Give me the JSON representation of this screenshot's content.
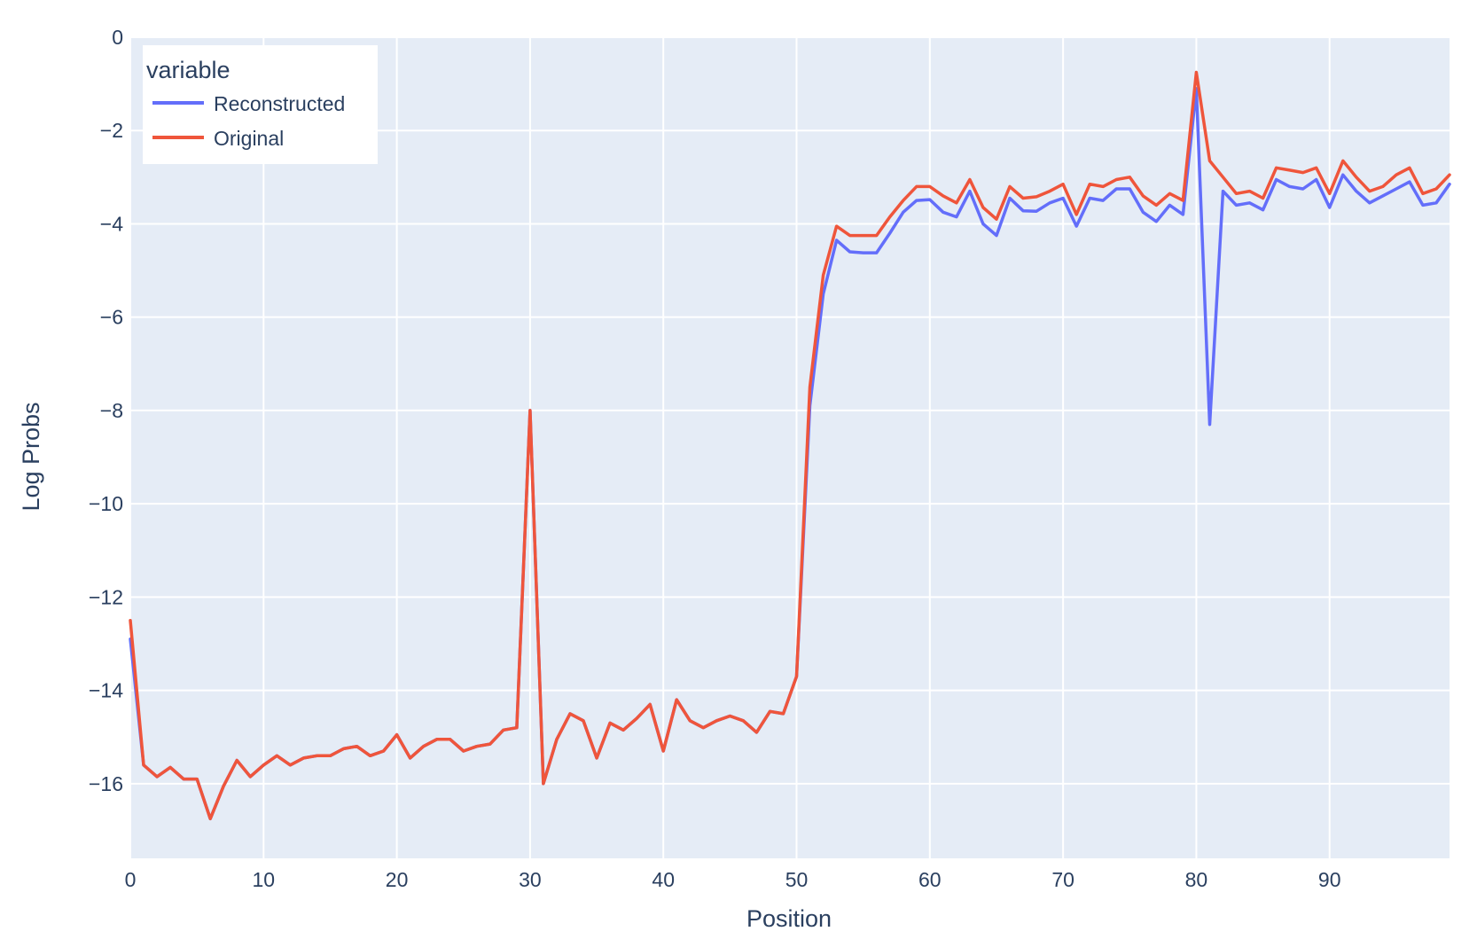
{
  "chart_data": {
    "type": "line",
    "xlabel": "Position",
    "ylabel": "Log Probs",
    "xlim": [
      0,
      99
    ],
    "ylim": [
      -17.6,
      0
    ],
    "x_ticks": [
      0,
      10,
      20,
      30,
      40,
      50,
      60,
      70,
      80,
      90
    ],
    "y_ticks": [
      0,
      -2,
      -4,
      -6,
      -8,
      -10,
      -12,
      -14,
      -16
    ],
    "y_tick_labels": [
      "0",
      "−2",
      "−4",
      "−6",
      "−8",
      "−10",
      "−12",
      "−14",
      "−16"
    ],
    "grid": true,
    "legend": {
      "title": "variable",
      "position": "top-left"
    },
    "series": [
      {
        "name": "Reconstructed",
        "color": "#636efa",
        "values": [
          -12.9,
          -15.6,
          -15.85,
          -15.65,
          -15.9,
          -15.9,
          -16.75,
          -16.05,
          -15.5,
          -15.85,
          -15.6,
          -15.4,
          -15.6,
          -15.45,
          -15.4,
          -15.4,
          -15.25,
          -15.2,
          -15.4,
          -15.3,
          -14.95,
          -15.45,
          -15.2,
          -15.05,
          -15.05,
          -15.3,
          -15.2,
          -15.15,
          -14.85,
          -14.8,
          -8.0,
          -16.0,
          -15.05,
          -14.5,
          -14.65,
          -15.45,
          -14.7,
          -14.85,
          -14.6,
          -14.3,
          -15.3,
          -14.2,
          -14.65,
          -14.8,
          -14.65,
          -14.55,
          -14.65,
          -14.9,
          -14.45,
          -14.5,
          -13.7,
          -7.9,
          -5.5,
          -4.35,
          -4.6,
          -4.62,
          -4.62,
          -4.2,
          -3.75,
          -3.5,
          -3.48,
          -3.75,
          -3.85,
          -3.3,
          -4.0,
          -4.25,
          -3.45,
          -3.72,
          -3.73,
          -3.55,
          -3.45,
          -4.05,
          -3.45,
          -3.5,
          -3.25,
          -3.25,
          -3.75,
          -3.95,
          -3.6,
          -3.8,
          -1.1,
          -8.3,
          -3.3,
          -3.6,
          -3.55,
          -3.7,
          -3.05,
          -3.2,
          -3.25,
          -3.05,
          -3.65,
          -2.95,
          -3.3,
          -3.55,
          -3.4,
          -3.25,
          -3.1,
          -3.6,
          -3.55,
          -3.15
        ]
      },
      {
        "name": "Original",
        "color": "#ef553b",
        "values": [
          -12.5,
          -15.6,
          -15.85,
          -15.65,
          -15.9,
          -15.9,
          -16.75,
          -16.05,
          -15.5,
          -15.85,
          -15.6,
          -15.4,
          -15.6,
          -15.45,
          -15.4,
          -15.4,
          -15.25,
          -15.2,
          -15.4,
          -15.3,
          -14.95,
          -15.45,
          -15.2,
          -15.05,
          -15.05,
          -15.3,
          -15.2,
          -15.15,
          -14.85,
          -14.8,
          -8.0,
          -16.0,
          -15.05,
          -14.5,
          -14.65,
          -15.45,
          -14.7,
          -14.85,
          -14.6,
          -14.3,
          -15.3,
          -14.2,
          -14.65,
          -14.8,
          -14.65,
          -14.55,
          -14.65,
          -14.9,
          -14.45,
          -14.5,
          -13.7,
          -7.5,
          -5.1,
          -4.05,
          -4.25,
          -4.25,
          -4.25,
          -3.85,
          -3.5,
          -3.2,
          -3.2,
          -3.4,
          -3.55,
          -3.05,
          -3.65,
          -3.9,
          -3.2,
          -3.45,
          -3.42,
          -3.3,
          -3.15,
          -3.8,
          -3.15,
          -3.2,
          -3.05,
          -3.0,
          -3.4,
          -3.6,
          -3.35,
          -3.5,
          -0.75,
          -2.65,
          -3.0,
          -3.35,
          -3.3,
          -3.45,
          -2.8,
          -2.85,
          -2.9,
          -2.8,
          -3.35,
          -2.65,
          -3.0,
          -3.3,
          -3.2,
          -2.95,
          -2.8,
          -3.35,
          -3.25,
          -2.95
        ]
      }
    ]
  }
}
